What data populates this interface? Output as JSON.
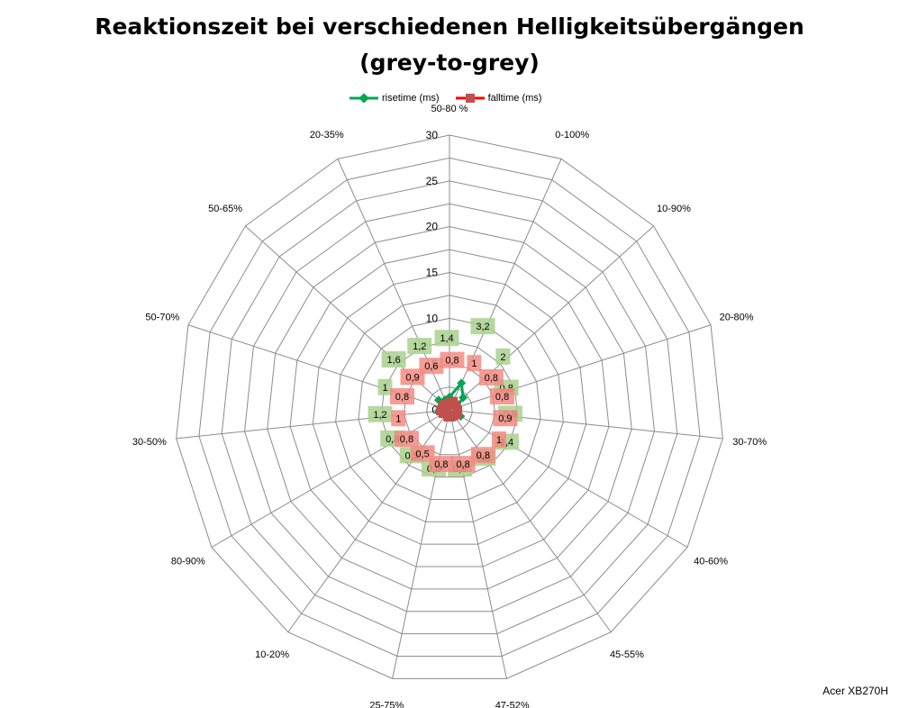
{
  "title_lines": [
    "Reaktionszeit bei verschiedenen Helligkeitsübergängen",
    "(grey-to-grey)"
  ],
  "watermark": "Acer XB270H",
  "chart_data": {
    "type": "radar",
    "title": "Reaktionszeit bei verschiedenen Helligkeitsübergängen (grey-to-grey)",
    "categories": [
      "50-80 %",
      "0-100%",
      "10-90%",
      "20-80%",
      "30-70%",
      "40-60%",
      "45-55%",
      "47-52%",
      "25-75%",
      "10-20%",
      "80-90%",
      "30-50%",
      "50-70%",
      "50-65%",
      "20-35%"
    ],
    "rlim": [
      0,
      30
    ],
    "rticks": [
      "0",
      "5",
      "10",
      "15",
      "20",
      "25",
      "30"
    ],
    "grid": true,
    "legend_position": "top",
    "series": [
      {
        "name": "risetime (ms)",
        "color": "#00a650",
        "label_bg": "#a9d18e",
        "values": [
          1.4,
          3.2,
          2,
          0.8,
          0.9,
          1.4,
          0.8,
          0.8,
          0.8,
          0.5,
          0.8,
          1.2,
          1,
          1.6,
          1.2
        ],
        "labels": [
          "1,4",
          "3,2",
          "2",
          "0,8",
          "0,9",
          "1,4",
          "0,8",
          "0,8",
          "0,8",
          "0,5",
          "0,8",
          "1,2",
          "1",
          "1,6",
          "1,2"
        ]
      },
      {
        "name": "falltime (ms)",
        "color": "#c0504d",
        "label_bg": "#f28b82",
        "values": [
          0.8,
          1,
          0.8,
          0.8,
          0.9,
          1,
          0.8,
          0.8,
          0.8,
          0.5,
          0.8,
          1,
          0.8,
          0.9,
          0.6
        ],
        "labels": [
          "0,8",
          "1",
          "0,8",
          "0,8",
          "0,9",
          "1",
          "0,8",
          "0,8",
          "0,8",
          "0,5",
          "0,8",
          "1",
          "0,8",
          "0,9",
          "0,6"
        ]
      }
    ]
  }
}
